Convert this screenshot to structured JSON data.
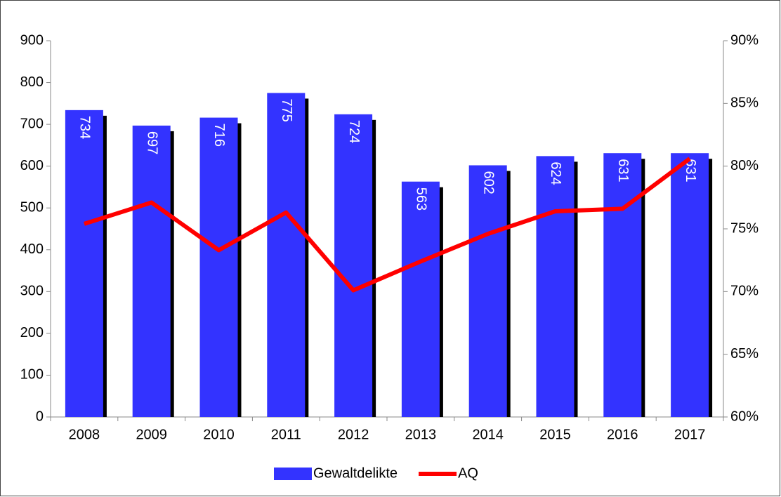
{
  "chart_data": {
    "type": "bar",
    "categories": [
      "2008",
      "2009",
      "2010",
      "2011",
      "2012",
      "2013",
      "2014",
      "2015",
      "2016",
      "2017"
    ],
    "series": [
      {
        "name": "Gewaltdelikte",
        "color": "#3333ff",
        "type": "bar",
        "values": [
          734,
          697,
          716,
          775,
          724,
          563,
          602,
          624,
          631,
          631
        ]
      },
      {
        "name": "AQ",
        "color": "#ff0000",
        "type": "line",
        "axis": "y2",
        "values": [
          75.4,
          77.1,
          73.3,
          76.3,
          70.1,
          72.4,
          74.6,
          76.4,
          76.6,
          80.6
        ]
      }
    ],
    "ylim": [
      0,
      900
    ],
    "yticks": [
      0,
      100,
      200,
      300,
      400,
      500,
      600,
      700,
      800,
      900
    ],
    "y2lim": [
      60,
      90
    ],
    "y2ticks": [
      {
        "value": 60,
        "label": "60%"
      },
      {
        "value": 65,
        "label": "65%"
      },
      {
        "value": 70,
        "label": "70%"
      },
      {
        "value": 75,
        "label": "75%"
      },
      {
        "value": 80,
        "label": "80%"
      },
      {
        "value": 85,
        "label": "85%"
      },
      {
        "value": 90,
        "label": "90%"
      }
    ],
    "legend": "bottom"
  }
}
